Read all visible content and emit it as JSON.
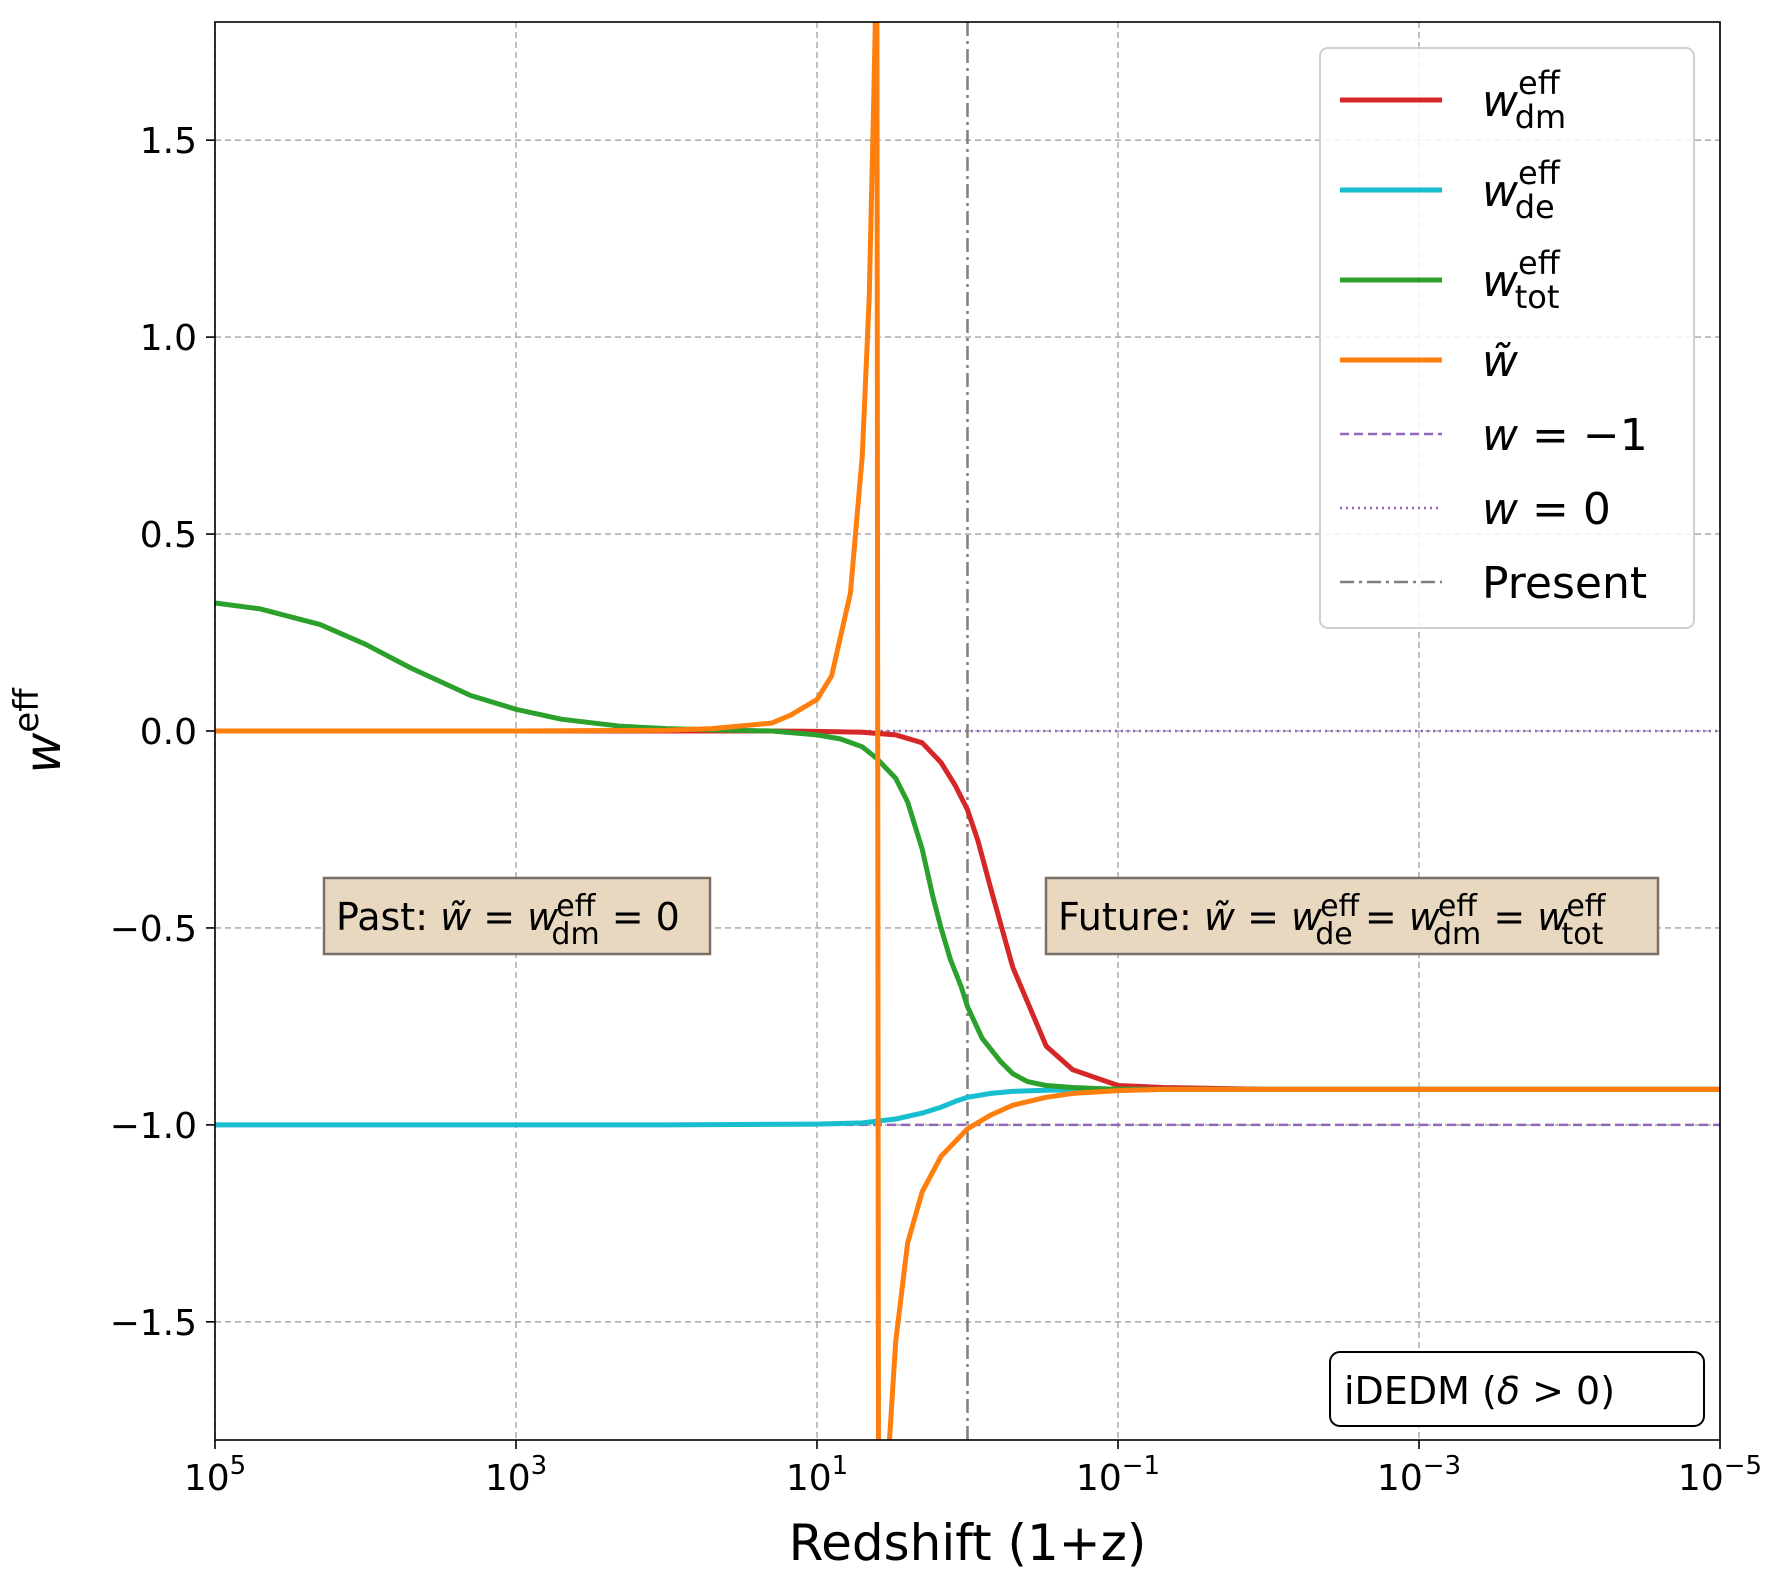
{
  "chart_data": {
    "type": "line",
    "title": "",
    "xlabel": "Redshift (1+z)",
    "ylabel": {
      "base": "w",
      "sup": "eff"
    },
    "x_scale": "log",
    "x_reversed": true,
    "xlim": [
      100000,
      1e-05
    ],
    "ylim": [
      -1.8,
      1.8
    ],
    "xticks": [
      {
        "value": 100000,
        "base": "10",
        "exp": "5"
      },
      {
        "value": 1000,
        "base": "10",
        "exp": "3"
      },
      {
        "value": 10,
        "base": "10",
        "exp": "1"
      },
      {
        "value": 0.1,
        "base": "10",
        "exp": "−1"
      },
      {
        "value": 0.001,
        "base": "10",
        "exp": "−3"
      },
      {
        "value": 1e-05,
        "base": "10",
        "exp": "−5"
      }
    ],
    "yticks": [
      {
        "value": 1.5,
        "label": "1.5"
      },
      {
        "value": 1.0,
        "label": "1.0"
      },
      {
        "value": 0.5,
        "label": "0.5"
      },
      {
        "value": 0.0,
        "label": "0.0"
      },
      {
        "value": -0.5,
        "label": "−0.5"
      },
      {
        "value": -1.0,
        "label": "−1.0"
      },
      {
        "value": -1.5,
        "label": "−1.5"
      }
    ],
    "grid": true,
    "legend_position": "top-right",
    "series": [
      {
        "legend": {
          "base": "w",
          "sup": "eff",
          "sub": "dm"
        },
        "color": "#d62728",
        "style": "solid",
        "x": [
          100000,
          1000,
          100,
          20,
          10,
          5,
          3,
          2,
          1.5,
          1.2,
          1.0,
          0.85,
          0.7,
          0.5,
          0.3,
          0.2,
          0.1,
          0.05,
          0.01,
          0.001,
          1e-05
        ],
        "y": [
          0.0,
          0.0,
          0.0,
          0.0,
          -0.001,
          -0.003,
          -0.01,
          -0.03,
          -0.08,
          -0.14,
          -0.2,
          -0.28,
          -0.4,
          -0.6,
          -0.8,
          -0.86,
          -0.9,
          -0.905,
          -0.91,
          -0.91,
          -0.91
        ]
      },
      {
        "legend": {
          "base": "w",
          "sup": "eff",
          "sub": "de"
        },
        "color": "#17becf",
        "style": "solid",
        "x": [
          100000,
          1000,
          100,
          10,
          5,
          3,
          2,
          1.5,
          1.2,
          1.0,
          0.7,
          0.5,
          0.3,
          0.1,
          0.01,
          1e-05
        ],
        "y": [
          -1.0,
          -1.0,
          -1.0,
          -0.998,
          -0.995,
          -0.985,
          -0.97,
          -0.955,
          -0.94,
          -0.93,
          -0.92,
          -0.915,
          -0.912,
          -0.91,
          -0.91,
          -0.91
        ]
      },
      {
        "legend": {
          "base": "w",
          "sup": "eff",
          "sub": "tot"
        },
        "color": "#2ca02c",
        "style": "solid",
        "x": [
          100000,
          50000,
          20000,
          10000,
          5000,
          2000,
          1000,
          500,
          200,
          100,
          50,
          20,
          10,
          7,
          5,
          4,
          3,
          2.5,
          2,
          1.7,
          1.5,
          1.3,
          1.1,
          1.0,
          0.8,
          0.6,
          0.5,
          0.4,
          0.3,
          0.2,
          0.1,
          0.01,
          1e-05
        ],
        "y": [
          0.325,
          0.31,
          0.27,
          0.22,
          0.16,
          0.09,
          0.055,
          0.03,
          0.012,
          0.006,
          0.003,
          0.0,
          -0.01,
          -0.02,
          -0.04,
          -0.07,
          -0.12,
          -0.18,
          -0.3,
          -0.42,
          -0.5,
          -0.58,
          -0.65,
          -0.7,
          -0.78,
          -0.84,
          -0.87,
          -0.89,
          -0.9,
          -0.905,
          -0.91,
          -0.91,
          -0.91
        ]
      },
      {
        "legend": {
          "base": "w̃"
        },
        "color": "#ff7f0e",
        "style": "solid",
        "x": [
          100000,
          1000,
          100,
          50,
          20,
          15,
          10,
          8,
          6,
          5,
          4.5,
          4.2,
          4.1,
          4.0,
          3.9,
          3.7,
          3.5,
          3.3,
          3.0,
          2.5,
          2.0,
          1.5,
          1.0,
          0.7,
          0.5,
          0.3,
          0.2,
          0.1,
          0.05,
          0.01,
          0.001,
          1e-05
        ],
        "y": [
          0.0,
          0.0,
          0.002,
          0.006,
          0.02,
          0.04,
          0.08,
          0.14,
          0.35,
          0.7,
          1.1,
          1.6,
          1.8,
          1.9,
          -1.9,
          -1.9,
          -1.85,
          -1.8,
          -1.55,
          -1.3,
          -1.17,
          -1.08,
          -1.01,
          -0.975,
          -0.95,
          -0.93,
          -0.92,
          -0.913,
          -0.91,
          -0.91,
          -0.91,
          -0.91
        ]
      },
      {
        "legend": {
          "base": "w",
          "rest": " = −1"
        },
        "color": "#9467bd",
        "style": "dashed",
        "x": [
          100000,
          1e-05
        ],
        "y": [
          -1.0,
          -1.0
        ]
      },
      {
        "legend": {
          "base": "w",
          "rest": " = 0"
        },
        "color": "#9467bd",
        "style": "dotted",
        "x": [
          100000,
          1e-05
        ],
        "y": [
          0.0,
          0.0
        ]
      },
      {
        "legend": {
          "text": "Present"
        },
        "color": "#7f7f7f",
        "style": "dashdot",
        "vline_x": 1.0
      }
    ],
    "annotations": {
      "past": {
        "prefix": "Past: ",
        "w": "w̃",
        "eq": " = ",
        "w2": "w",
        "sup": "eff",
        "sub": "dm",
        "suffix": " = 0"
      },
      "future": {
        "prefix": "Future: ",
        "terms": [
          {
            "w": "w̃"
          },
          {
            "w": "w",
            "sup": "eff",
            "sub": "de"
          },
          {
            "w": "w",
            "sup": "eff",
            "sub": "dm"
          },
          {
            "w": "w",
            "sup": "eff",
            "sub": "tot"
          }
        ],
        "eq": " = "
      },
      "model": {
        "text": "iDEDM (",
        "symbol": "δ",
        "rest": " > 0)"
      }
    }
  }
}
